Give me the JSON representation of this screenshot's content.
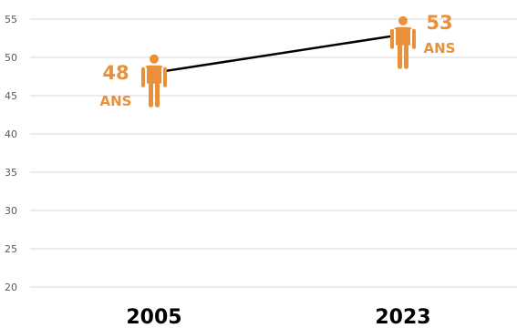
{
  "chart_data": {
    "type": "line",
    "categories": [
      "2005",
      "2023"
    ],
    "values": [
      48,
      53
    ],
    "unit_label": "ANS",
    "y_ticks": [
      "20",
      "25",
      "30",
      "35",
      "40",
      "45",
      "50",
      "55"
    ],
    "ylim": [
      20,
      56
    ],
    "grid": true,
    "line_color": "#000000",
    "marker": "person-icon",
    "accent_color": "#E8913A"
  }
}
